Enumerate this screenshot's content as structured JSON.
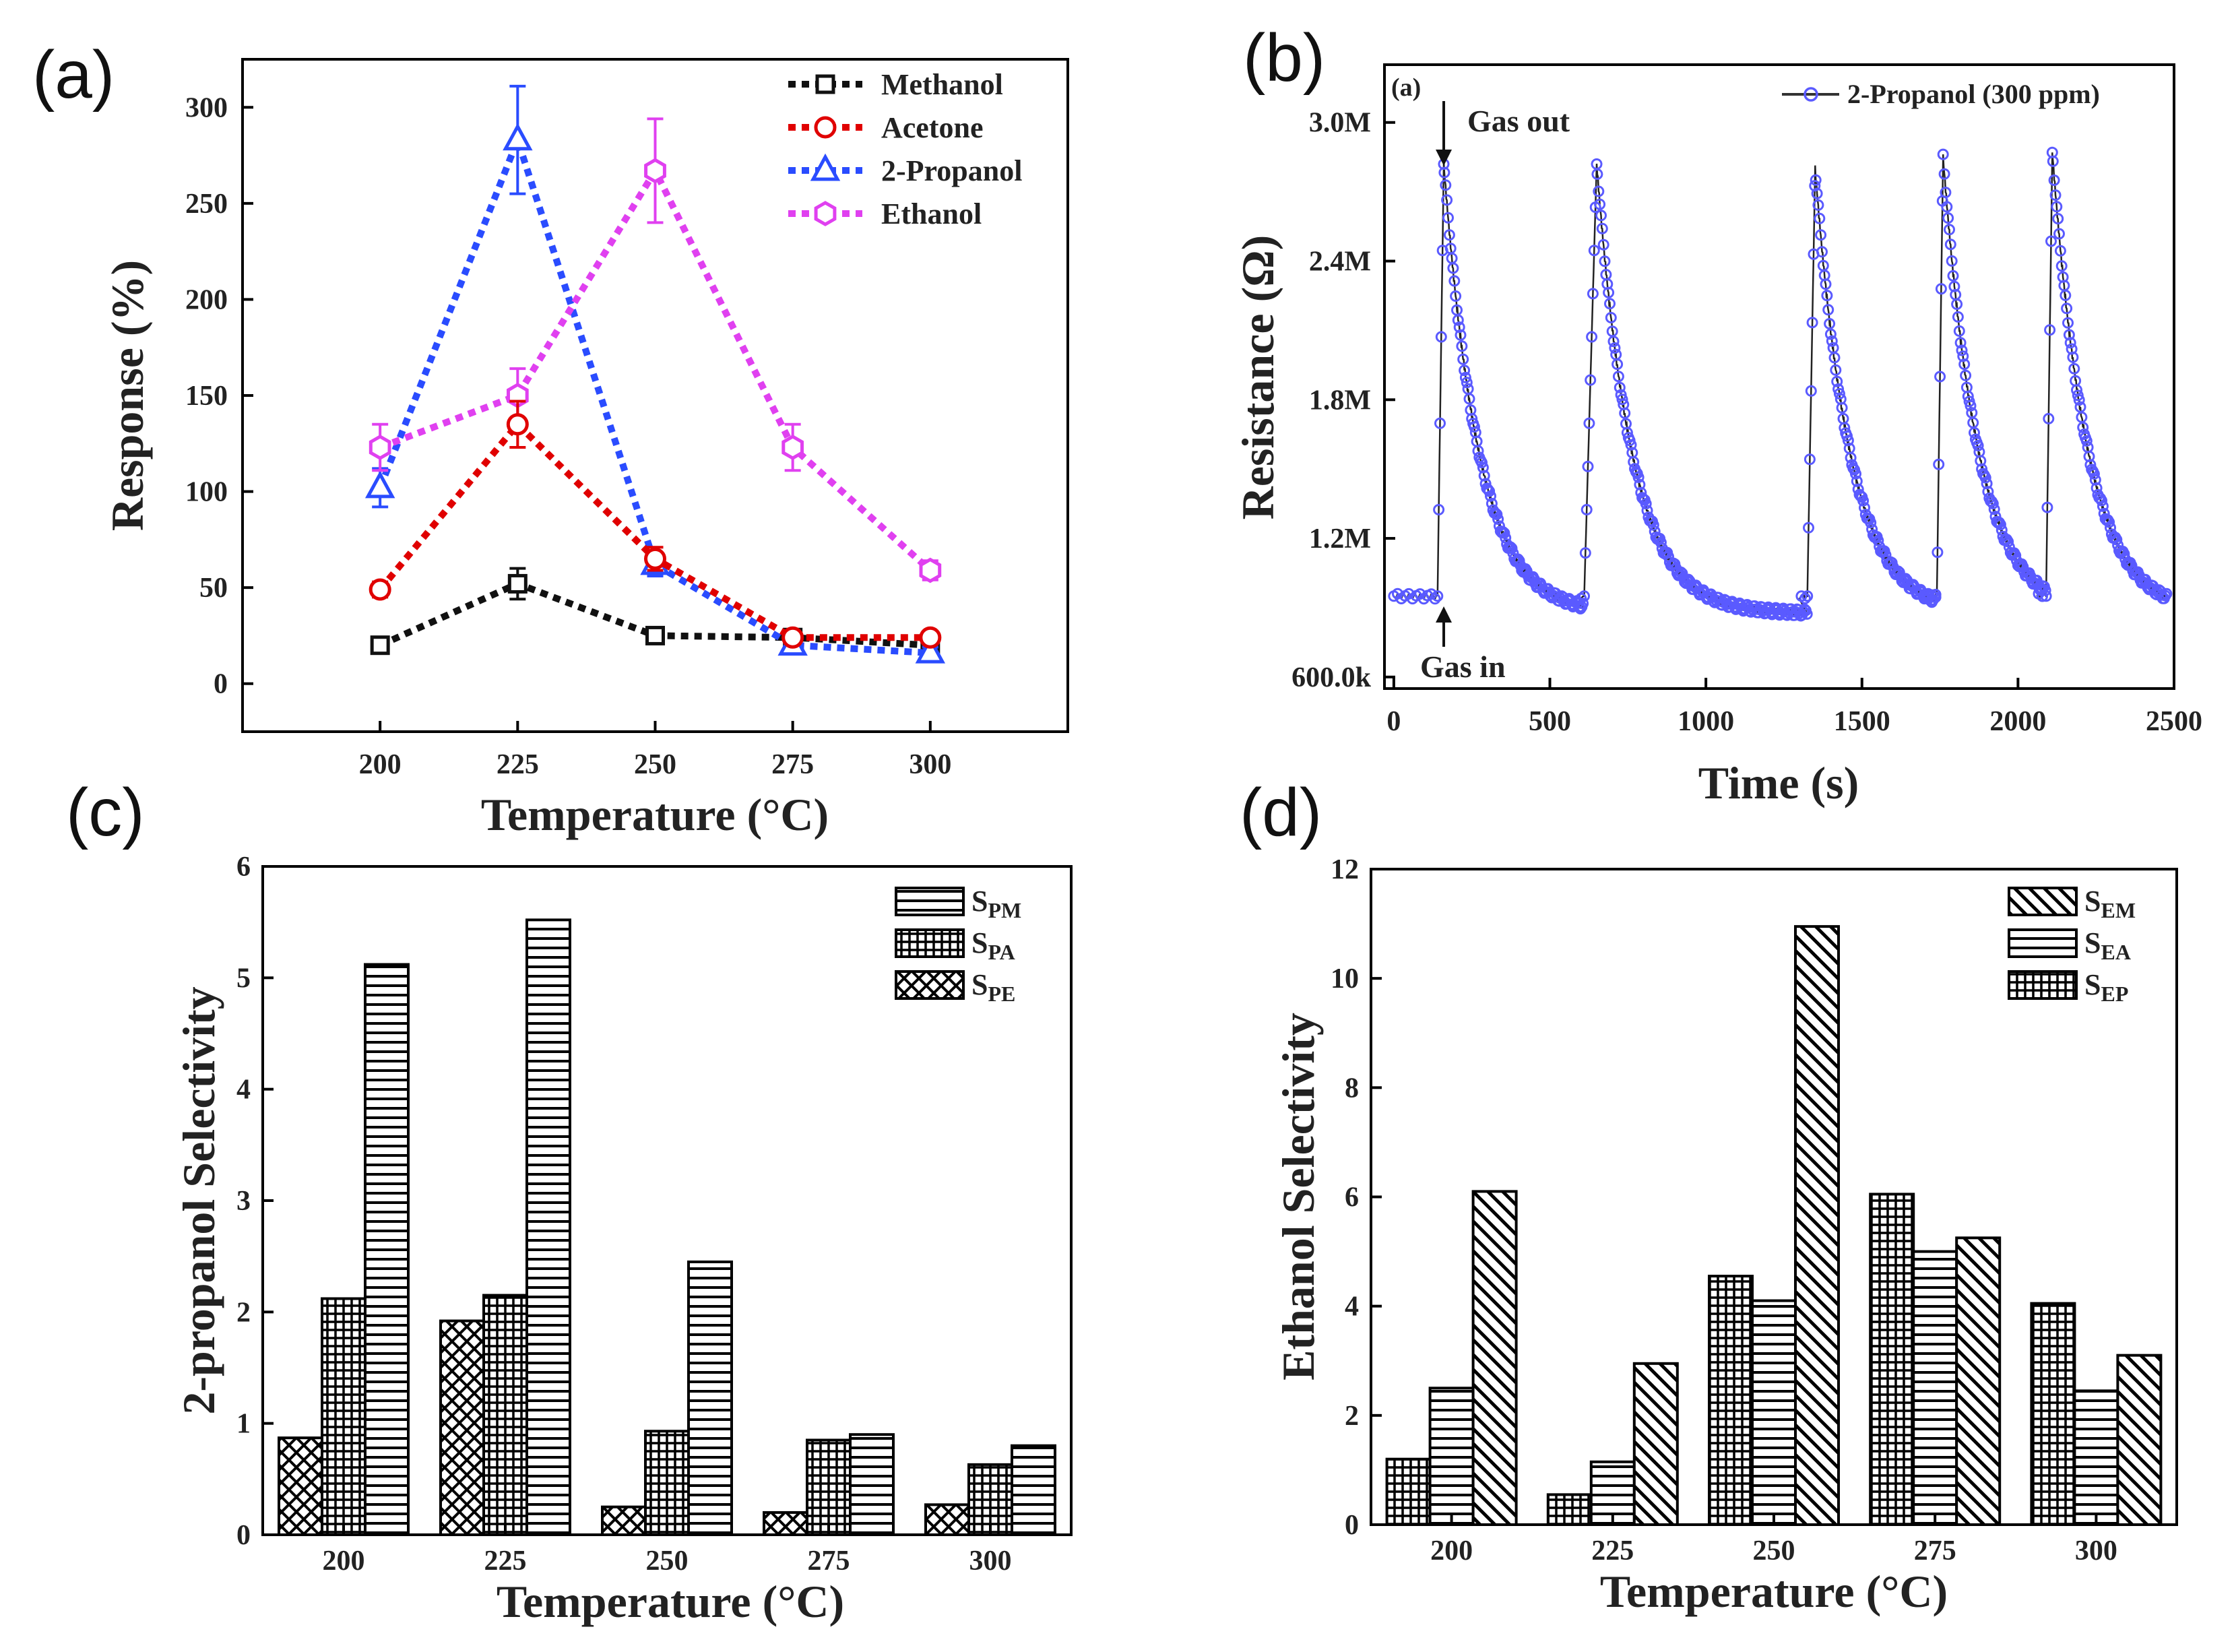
{
  "figure": {
    "panel_labels": [
      "(a)",
      "(b)",
      "(c)",
      "(d)"
    ],
    "colors": {
      "Methanol": "#111111",
      "Acetone": "#e00000",
      "2-Propanol": "#2a4cff",
      "Ethanol": "#e040f0",
      "trace": "#5a5aff",
      "bar": "#000000"
    }
  },
  "chart_data": [
    {
      "id": "a",
      "type": "line",
      "title": "",
      "xlabel": "Temperature (°C)",
      "ylabel": "Response (%)",
      "x": [
        200,
        225,
        250,
        275,
        300
      ],
      "xlim": [
        175,
        325
      ],
      "ylim": [
        -25,
        325
      ],
      "xticks": [
        200,
        225,
        250,
        275,
        300
      ],
      "yticks": [
        0,
        50,
        100,
        150,
        200,
        250,
        300
      ],
      "legend_position": "top-right",
      "series": [
        {
          "name": "Methanol",
          "marker": "square",
          "values": [
            20,
            52,
            25,
            24,
            20
          ],
          "errors": [
            4,
            8,
            3,
            3,
            3
          ]
        },
        {
          "name": "Acetone",
          "marker": "circle",
          "values": [
            49,
            135,
            65,
            24,
            24
          ],
          "errors": [
            4,
            12,
            6,
            3,
            3
          ]
        },
        {
          "name": "2-Propanol",
          "marker": "triangle",
          "values": [
            102,
            283,
            62,
            20,
            16
          ],
          "errors": [
            10,
            28,
            6,
            3,
            3
          ]
        },
        {
          "name": "Ethanol",
          "marker": "hexagon",
          "values": [
            123,
            150,
            267,
            123,
            59
          ],
          "errors": [
            12,
            14,
            27,
            12,
            5
          ]
        }
      ]
    },
    {
      "id": "b",
      "type": "line",
      "title": "",
      "xlabel": "Time (s)",
      "ylabel": "Resistance (Ω)",
      "inner_label": "(a)",
      "legend": "2-Propanol (300 ppm)",
      "legend_position": "top-right",
      "xlim": [
        -30,
        2500
      ],
      "ylim": [
        550000,
        3250000
      ],
      "xticks": [
        0,
        500,
        1000,
        1500,
        2000,
        2500
      ],
      "yticks": [
        600000,
        1200000,
        1800000,
        2400000,
        3000000
      ],
      "ytick_labels": [
        "600.0k",
        "1.2M",
        "1.8M",
        "2.4M",
        "3.0M"
      ],
      "annotations": [
        "Gas out",
        "Gas in"
      ],
      "baseline_ohm": 950000,
      "cycles": [
        {
          "start_s": 0,
          "in_s": 140,
          "peak_s": 160,
          "peak_ohm": 2820000
        },
        {
          "start_s": 600,
          "in_s": 610,
          "peak_s": 650,
          "peak_ohm": 2820000
        },
        {
          "start_s": 1300,
          "in_s": 1325,
          "peak_s": 1350,
          "peak_ohm": 2800000
        },
        {
          "start_s": 1700,
          "in_s": 1740,
          "peak_s": 1760,
          "peak_ohm": 2850000
        },
        {
          "start_s": 2060,
          "in_s": 2090,
          "peak_s": 2110,
          "peak_ohm": 2870000
        }
      ],
      "end_s": 2480
    },
    {
      "id": "c",
      "type": "bar",
      "title": "",
      "xlabel": "Temperature (°C)",
      "ylabel": "2-propanol Selectivity",
      "categories": [
        "200",
        "225",
        "250",
        "275",
        "300"
      ],
      "ylim": [
        0,
        6
      ],
      "yticks": [
        0,
        1,
        2,
        3,
        4,
        5,
        6
      ],
      "legend_position": "top-right",
      "series": [
        {
          "name": "S",
          "sub": "PE",
          "pattern": "crosshatch",
          "values": [
            0.87,
            1.92,
            0.25,
            0.2,
            0.27
          ]
        },
        {
          "name": "S",
          "sub": "PA",
          "pattern": "grid",
          "values": [
            2.12,
            2.15,
            0.93,
            0.85,
            0.63
          ]
        },
        {
          "name": "S",
          "sub": "PM",
          "pattern": "hlines",
          "values": [
            5.12,
            5.52,
            2.45,
            0.9,
            0.8
          ]
        }
      ],
      "legend_order": [
        2,
        1,
        0
      ]
    },
    {
      "id": "d",
      "type": "bar",
      "title": "",
      "xlabel": "Temperature (°C)",
      "ylabel": "Ethanol Selectivity",
      "categories": [
        "200",
        "225",
        "250",
        "275",
        "300"
      ],
      "ylim": [
        0,
        12
      ],
      "yticks": [
        0,
        2,
        4,
        6,
        8,
        10,
        12
      ],
      "legend_position": "top-right",
      "series": [
        {
          "name": "S",
          "sub": "EP",
          "pattern": "grid",
          "values": [
            1.2,
            0.55,
            4.55,
            6.05,
            4.05
          ]
        },
        {
          "name": "S",
          "sub": "EA",
          "pattern": "hlines",
          "values": [
            2.5,
            1.15,
            4.1,
            5.0,
            2.45
          ]
        },
        {
          "name": "S",
          "sub": "EM",
          "pattern": "diag",
          "values": [
            6.1,
            2.95,
            10.95,
            5.25,
            3.1
          ]
        }
      ],
      "legend_order": [
        2,
        1,
        0
      ]
    }
  ]
}
